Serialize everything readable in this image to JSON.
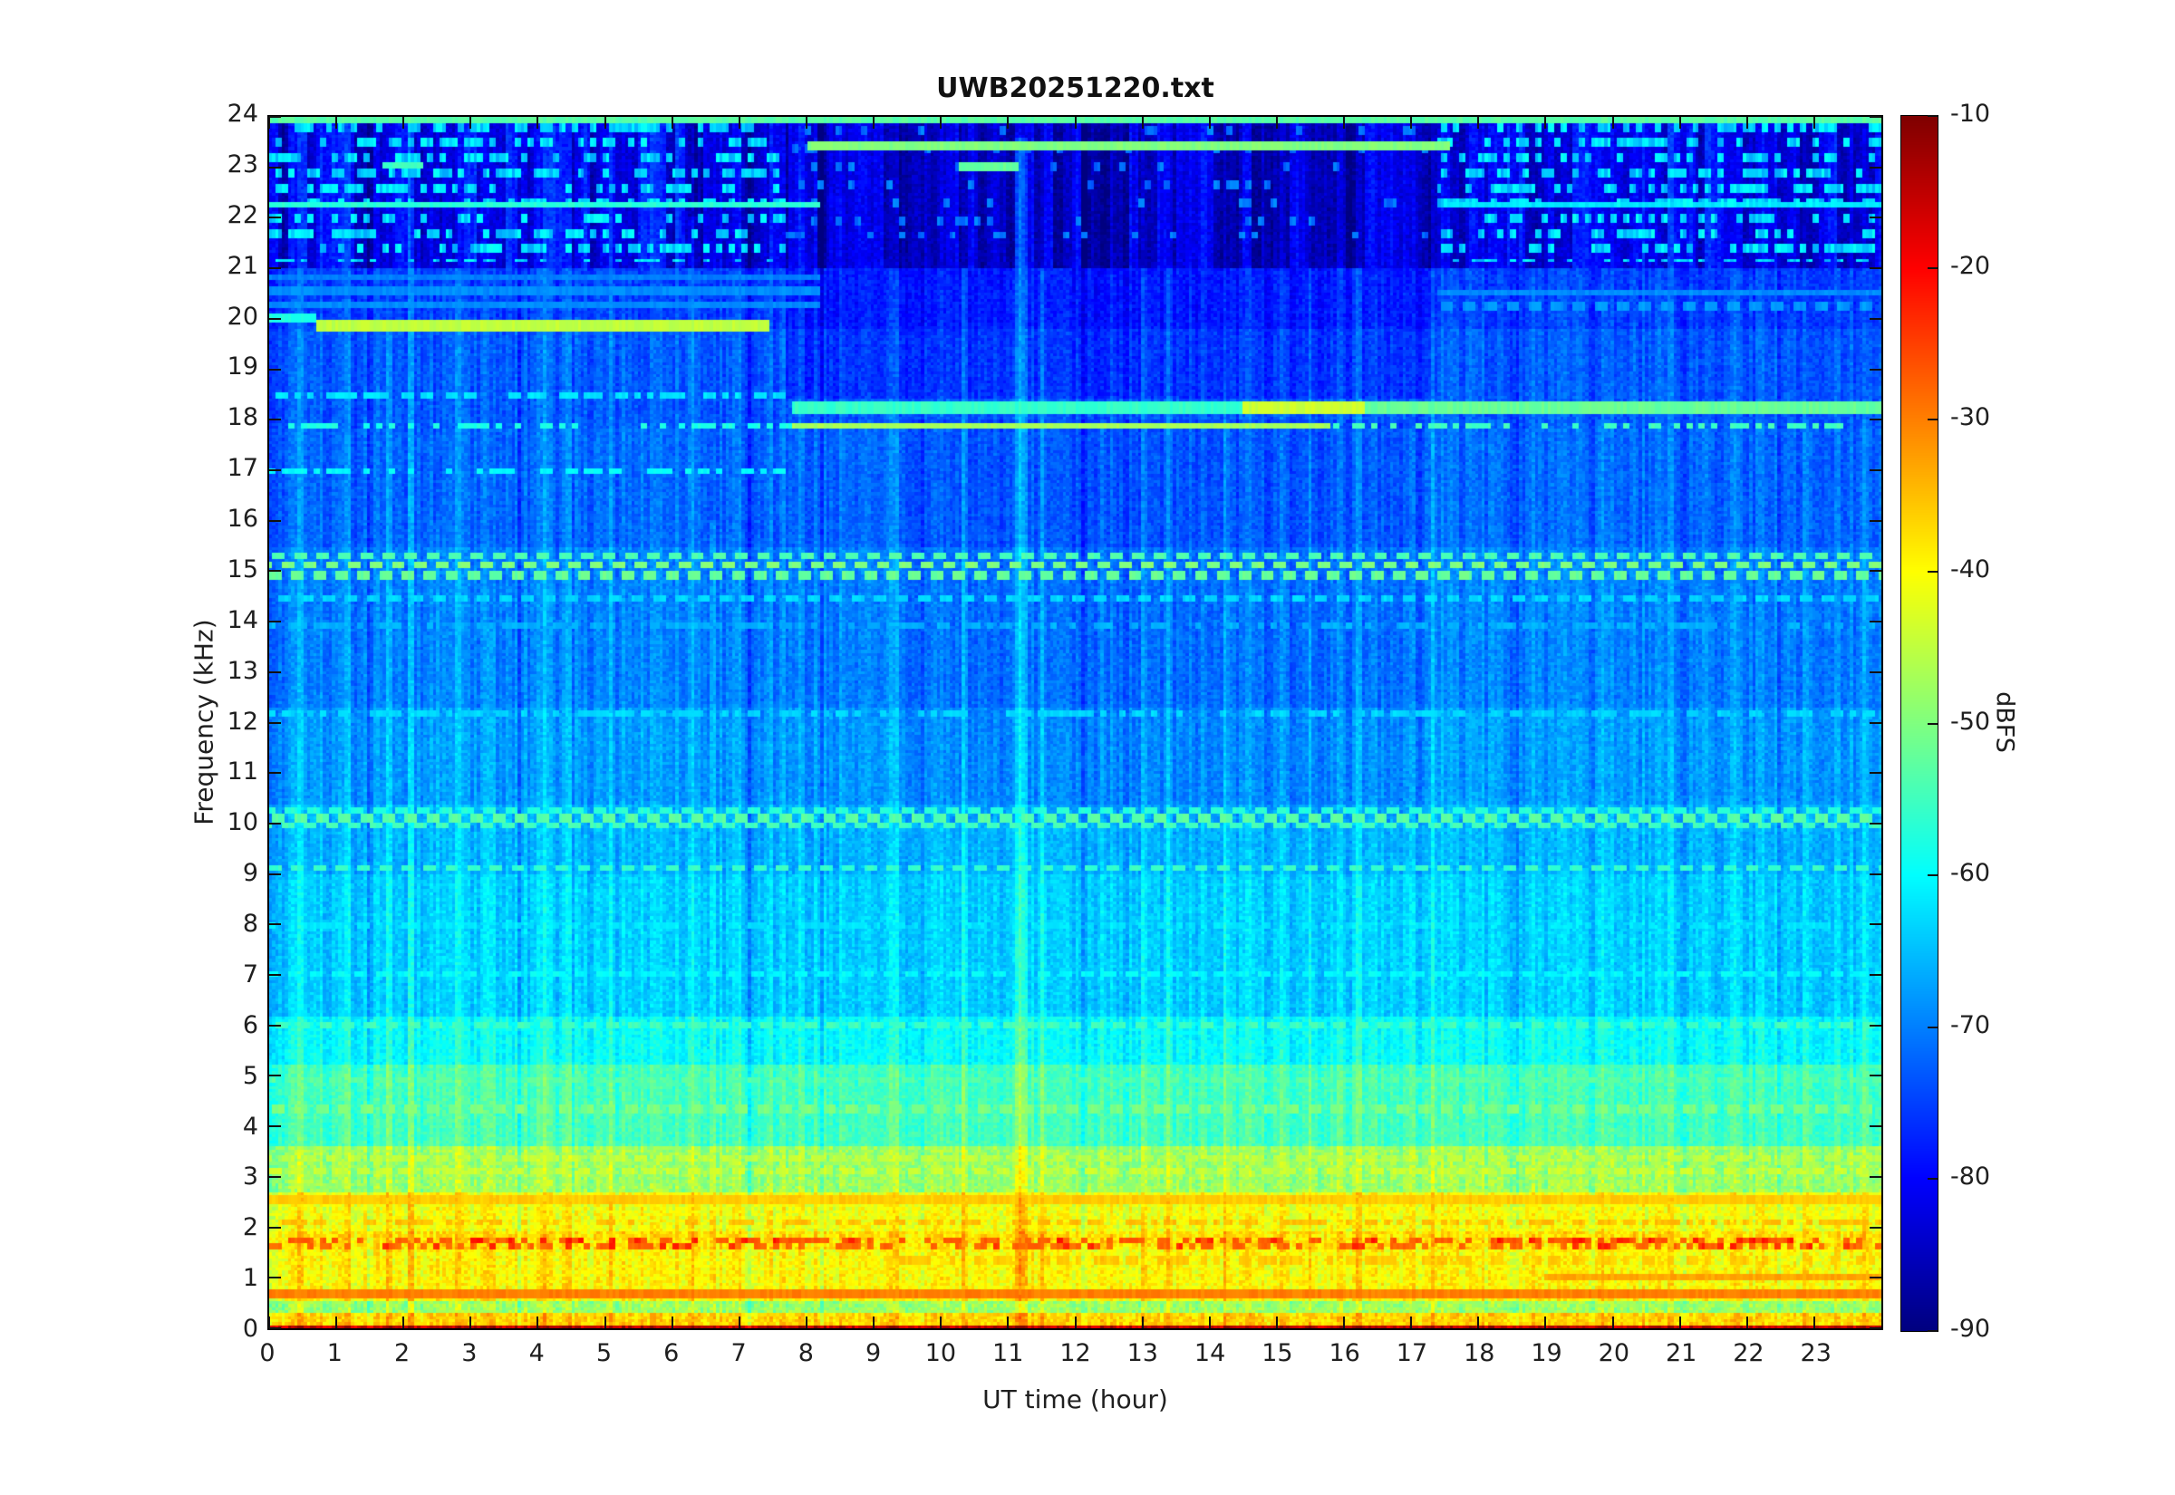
{
  "figure": {
    "title": "UWB20251220.txt",
    "background_color": "#ffffff",
    "axis_color": "#1f1f1f"
  },
  "axes": {
    "xlabel": "UT time (hour)",
    "ylabel": "Frequency (kHz)",
    "x_range": [
      0,
      24
    ],
    "y_range": [
      0,
      24
    ],
    "x_ticks": [
      0,
      1,
      2,
      3,
      4,
      5,
      6,
      7,
      8,
      9,
      10,
      11,
      12,
      13,
      14,
      15,
      16,
      17,
      18,
      19,
      20,
      21,
      22,
      23
    ],
    "y_ticks": [
      0,
      1,
      2,
      3,
      4,
      5,
      6,
      7,
      8,
      9,
      10,
      11,
      12,
      13,
      14,
      15,
      16,
      17,
      18,
      19,
      20,
      21,
      22,
      23,
      24
    ]
  },
  "colorbar": {
    "label": "dBFS",
    "tick_values": [
      -10,
      -20,
      -30,
      -40,
      -50,
      -60,
      -70,
      -80,
      -90
    ],
    "top_value": -10,
    "bottom_value": -90
  },
  "chart_data": {
    "type": "heatmap",
    "title": "UWB20251220.txt",
    "xlabel": "UT time (hour)",
    "ylabel": "Frequency (kHz)",
    "xlim": [
      0,
      24
    ],
    "ylim": [
      0,
      24
    ],
    "value_label": "dBFS",
    "value_range": [
      -90,
      -10
    ],
    "colormap": "jet",
    "seed": 7,
    "grid_cols": 512,
    "grid_rows": 400,
    "background_profile": [
      {
        "f_max": 0.06,
        "dbfs": -15
      },
      {
        "f_max": 0.3,
        "dbfs": -37
      },
      {
        "f_max": 0.55,
        "dbfs": -48
      },
      {
        "f_max": 1.55,
        "dbfs": -40
      },
      {
        "f_max": 1.95,
        "dbfs": -38
      },
      {
        "f_max": 2.7,
        "dbfs": -41
      },
      {
        "f_max": 3.6,
        "dbfs": -48
      },
      {
        "f_max": 5.2,
        "dbfs": -55
      },
      {
        "f_max": 6.2,
        "dbfs": -60
      },
      {
        "f_max": 9.0,
        "dbfs": -64
      },
      {
        "f_max": 10.4,
        "dbfs": -66
      },
      {
        "f_max": 12.3,
        "dbfs": -68
      },
      {
        "f_max": 15.5,
        "dbfs": -70
      },
      {
        "f_max": 17.8,
        "dbfs": -72
      },
      {
        "f_max": 19.8,
        "dbfs": -73
      },
      {
        "f_max": 21.0,
        "dbfs": -75
      },
      {
        "f_max": 24.0,
        "dbfs": -79
      }
    ],
    "noise_db_low": 3.2,
    "noise_db_high": 2.2,
    "region_offsets": [
      {
        "h0": 7.7,
        "h1": 17.4,
        "f0": 18.45,
        "f1": 24,
        "db": -3
      },
      {
        "h0": 0,
        "h1": 24,
        "f0": 21.0,
        "f1": 24,
        "db": -2
      },
      {
        "h0": 9.5,
        "h1": 17.2,
        "f0": 10,
        "f1": 18,
        "db": -1.5
      }
    ],
    "horizontal_features": [
      {
        "f": 0.68,
        "h0": 0,
        "h1": 24,
        "dbfs": -30,
        "w": 0.09,
        "style": "solid"
      },
      {
        "f": 1.0,
        "h0": 19,
        "h1": 24,
        "dbfs": -33,
        "w": 0.08,
        "style": "solid"
      },
      {
        "f": 1.35,
        "h0": 9,
        "h1": 24,
        "dbfs": -36,
        "w": 0.07,
        "style": "dotted"
      },
      {
        "f": 1.62,
        "h0": 0,
        "h1": 24,
        "dbfs": -28,
        "w": 0.08,
        "style": "dotted",
        "hot": -23
      },
      {
        "f": 1.76,
        "h0": 0,
        "h1": 24,
        "dbfs": -27,
        "w": 0.08,
        "style": "dotted",
        "hot": -22
      },
      {
        "f": 2.1,
        "h0": 0,
        "h1": 24,
        "dbfs": -35,
        "w": 0.07,
        "style": "dotted"
      },
      {
        "f": 2.55,
        "h0": 0,
        "h1": 24,
        "dbfs": -36,
        "w": 0.09,
        "style": "solid"
      },
      {
        "f": 3.1,
        "h0": 0,
        "h1": 24,
        "dbfs": -44,
        "w": 0.07,
        "style": "dashed"
      },
      {
        "f": 3.35,
        "h0": 0,
        "h1": 24,
        "dbfs": -45,
        "w": 0.07,
        "style": "dashed"
      },
      {
        "f": 4.35,
        "h0": 0,
        "h1": 24,
        "dbfs": -50,
        "w": 0.07,
        "style": "dashed"
      },
      {
        "f": 4.9,
        "h0": 0,
        "h1": 24,
        "dbfs": -53,
        "w": 0.06,
        "style": "dashed"
      },
      {
        "f": 6.0,
        "h0": 0,
        "h1": 24,
        "dbfs": -55,
        "w": 0.07,
        "style": "dashed"
      },
      {
        "f": 7.05,
        "h0": 0,
        "h1": 24,
        "dbfs": -60,
        "w": 0.06,
        "style": "dashed"
      },
      {
        "f": 8.0,
        "h0": 0,
        "h1": 24,
        "dbfs": -62,
        "w": 0.05,
        "style": "dotted"
      },
      {
        "f": 9.1,
        "h0": 0,
        "h1": 24,
        "dbfs": -56,
        "w": 0.07,
        "style": "dashed"
      },
      {
        "f": 9.95,
        "h0": 0,
        "h1": 24,
        "dbfs": -55,
        "w": 0.07,
        "style": "dashed"
      },
      {
        "f": 10.1,
        "h0": 0,
        "h1": 24,
        "dbfs": -53,
        "w": 0.08,
        "style": "dashed"
      },
      {
        "f": 10.28,
        "h0": 0,
        "h1": 24,
        "dbfs": -57,
        "w": 0.06,
        "style": "dashed"
      },
      {
        "f": 12.2,
        "h0": 0,
        "h1": 24,
        "dbfs": -63,
        "w": 0.06,
        "style": "dotted"
      },
      {
        "f": 13.9,
        "h0": 0,
        "h1": 24,
        "dbfs": -66,
        "w": 0.05,
        "style": "dotted"
      },
      {
        "f": 14.45,
        "h0": 0,
        "h1": 24,
        "dbfs": -63,
        "w": 0.06,
        "style": "dashed"
      },
      {
        "f": 14.9,
        "h0": 0,
        "h1": 24,
        "dbfs": -52,
        "w": 0.09,
        "style": "dashed"
      },
      {
        "f": 15.12,
        "h0": 0,
        "h1": 24,
        "dbfs": -50,
        "w": 0.09,
        "style": "dashed"
      },
      {
        "f": 15.32,
        "h0": 0,
        "h1": 24,
        "dbfs": -54,
        "w": 0.08,
        "style": "dashed"
      },
      {
        "f": 17.0,
        "h0": 0,
        "h1": 7.8,
        "dbfs": -60,
        "w": 0.06,
        "style": "dotted"
      },
      {
        "f": 18.5,
        "h0": 0,
        "h1": 7.8,
        "dbfs": -62,
        "w": 0.06,
        "style": "dotted"
      },
      {
        "f": 17.87,
        "h0": 0,
        "h1": 7.8,
        "dbfs": -58,
        "w": 0.07,
        "style": "dotted"
      },
      {
        "f": 17.87,
        "h0": 7.8,
        "h1": 15.8,
        "dbfs": -47,
        "w": 0.1,
        "style": "solid"
      },
      {
        "f": 17.87,
        "h0": 15.8,
        "h1": 24,
        "dbfs": -55,
        "w": 0.08,
        "style": "dotted"
      },
      {
        "f": 18.25,
        "h0": 7.8,
        "h1": 14.5,
        "dbfs": -56,
        "w": 0.16,
        "style": "solid"
      },
      {
        "f": 18.25,
        "h0": 14.5,
        "h1": 16.3,
        "dbfs": -44,
        "w": 0.22,
        "style": "solid"
      },
      {
        "f": 18.25,
        "h0": 16.3,
        "h1": 24,
        "dbfs": -52,
        "w": 0.16,
        "style": "solid"
      },
      {
        "f": 20.02,
        "h0": 0,
        "h1": 0.7,
        "dbfs": -58,
        "w": 0.08,
        "style": "solid"
      },
      {
        "f": 19.88,
        "h0": 0.7,
        "h1": 7.45,
        "dbfs": -45,
        "w": 0.16,
        "style": "solid"
      },
      {
        "f": 20.3,
        "h0": 0,
        "h1": 8.2,
        "dbfs": -69,
        "w": 0.06,
        "style": "solid"
      },
      {
        "f": 20.55,
        "h0": 0,
        "h1": 8.2,
        "dbfs": -69,
        "w": 0.06,
        "style": "solid"
      },
      {
        "f": 20.8,
        "h0": 0,
        "h1": 8.2,
        "dbfs": -70,
        "w": 0.06,
        "style": "solid"
      },
      {
        "f": 20.25,
        "h0": 17.4,
        "h1": 24,
        "dbfs": -68,
        "w": 0.07,
        "style": "dashed"
      },
      {
        "f": 20.5,
        "h0": 17.4,
        "h1": 24,
        "dbfs": -69,
        "w": 0.07,
        "style": "solid"
      },
      {
        "f": 22.25,
        "h0": 0,
        "h1": 8.2,
        "dbfs": -57,
        "w": 0.08,
        "style": "solid"
      },
      {
        "f": 22.25,
        "h0": 17.5,
        "h1": 24,
        "dbfs": -62,
        "w": 0.07,
        "style": "solid"
      },
      {
        "f": 23.42,
        "h0": 8.0,
        "h1": 17.6,
        "dbfs": -50,
        "w": 0.1,
        "style": "solid"
      },
      {
        "f": 23.0,
        "h0": 10.25,
        "h1": 11.15,
        "dbfs": -52,
        "w": 0.09,
        "style": "solid"
      },
      {
        "f": 23.05,
        "h0": 1.7,
        "h1": 2.3,
        "dbfs": -55,
        "w": 0.09,
        "style": "solid"
      },
      {
        "f": 23.97,
        "h0": 0,
        "h1": 24,
        "dbfs": -53,
        "w": 0.08,
        "style": "solid"
      }
    ],
    "speckle_zones": [
      {
        "f0": 21.1,
        "f1": 23.95,
        "h0": 0,
        "h1": 7.7,
        "pitch": 0.3,
        "dbfs": -63,
        "density": 0.4,
        "jitter": 8
      },
      {
        "f0": 21.1,
        "f1": 23.95,
        "h0": 17.4,
        "h1": 24,
        "pitch": 0.3,
        "dbfs": -63,
        "density": 0.4,
        "jitter": 8
      },
      {
        "f0": 21.6,
        "f1": 23.9,
        "h0": 7.7,
        "h1": 17.4,
        "pitch": 0.35,
        "dbfs": -71,
        "density": 0.12,
        "jitter": 5
      }
    ],
    "vertical_streaks_format": "hour, db, f_top, width_hours",
    "vertical_streaks": [
      [
        0.07,
        -5,
        24,
        0.08
      ],
      [
        0.45,
        4,
        21,
        0.06
      ],
      [
        1.15,
        6,
        24,
        0.07
      ],
      [
        1.5,
        -4,
        24,
        0.07
      ],
      [
        1.78,
        4,
        20,
        0.06
      ],
      [
        2.1,
        5,
        24,
        0.06
      ],
      [
        2.5,
        3,
        16,
        0.06
      ],
      [
        2.85,
        5,
        21,
        0.07
      ],
      [
        3.3,
        3,
        14,
        0.06
      ],
      [
        3.75,
        -3,
        24,
        0.06
      ],
      [
        4.1,
        3,
        21,
        0.06
      ],
      [
        4.45,
        5,
        21,
        0.07
      ],
      [
        5.1,
        4,
        24,
        0.07
      ],
      [
        5.55,
        3,
        18,
        0.06
      ],
      [
        6.3,
        6,
        22,
        0.07
      ],
      [
        6.6,
        4,
        16,
        0.06
      ],
      [
        7.0,
        4,
        24,
        0.06
      ],
      [
        7.15,
        -4,
        24,
        0.06
      ],
      [
        7.45,
        3,
        21,
        0.06
      ],
      [
        7.9,
        5,
        24,
        0.07
      ],
      [
        8.2,
        -3,
        24,
        0.06
      ],
      [
        8.55,
        4,
        21,
        0.06
      ],
      [
        9.3,
        4,
        24,
        0.06
      ],
      [
        9.9,
        3,
        18,
        0.06
      ],
      [
        10.35,
        4,
        21,
        0.06
      ],
      [
        10.65,
        3,
        24,
        0.06
      ],
      [
        11.2,
        10,
        23.6,
        0.1
      ],
      [
        11.5,
        4,
        21,
        0.06
      ],
      [
        12.15,
        -4,
        24,
        0.06
      ],
      [
        12.4,
        4,
        18,
        0.06
      ],
      [
        13.05,
        4,
        21,
        0.06
      ],
      [
        13.4,
        3,
        24,
        0.06
      ],
      [
        13.8,
        -3,
        24,
        0.06
      ],
      [
        14.25,
        4,
        18,
        0.06
      ],
      [
        14.6,
        3,
        21,
        0.06
      ],
      [
        15.05,
        4,
        24,
        0.07
      ],
      [
        15.5,
        4,
        21,
        0.06
      ],
      [
        15.95,
        5,
        24,
        0.07
      ],
      [
        16.2,
        4,
        21,
        0.06
      ],
      [
        16.45,
        4,
        24,
        0.06
      ],
      [
        17.0,
        3,
        18,
        0.06
      ],
      [
        17.15,
        -3,
        24,
        0.06
      ],
      [
        17.3,
        4,
        21,
        0.06
      ],
      [
        18.2,
        4,
        18,
        0.06
      ],
      [
        18.55,
        -4,
        24,
        0.06
      ],
      [
        18.8,
        3,
        21,
        0.06
      ],
      [
        19.25,
        4,
        24,
        0.06
      ],
      [
        19.8,
        3,
        18,
        0.06
      ],
      [
        20.3,
        3,
        21,
        0.06
      ],
      [
        20.85,
        4,
        24,
        0.06
      ],
      [
        21.05,
        -4,
        24,
        0.06
      ],
      [
        21.35,
        3,
        18,
        0.06
      ],
      [
        21.8,
        3,
        21,
        0.06
      ],
      [
        22.25,
        4,
        24,
        0.06
      ],
      [
        22.5,
        -4,
        24,
        0.06
      ],
      [
        22.9,
        3,
        18,
        0.06
      ],
      [
        23.35,
        3,
        21,
        0.06
      ],
      [
        23.75,
        3,
        18,
        0.06
      ]
    ],
    "column_texture": {
      "f_min": 21,
      "db": 5
    }
  }
}
